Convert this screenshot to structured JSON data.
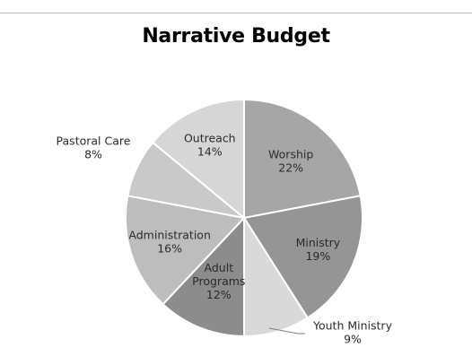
{
  "chart_data": {
    "type": "pie",
    "title": "Narrative Budget",
    "slices": [
      {
        "label": "Worship",
        "value": 22,
        "pct": "22%",
        "color": "#a6a6a6"
      },
      {
        "label": "Ministry",
        "value": 19,
        "pct": "19%",
        "color": "#959595"
      },
      {
        "label": "Youth Ministry",
        "value": 9,
        "pct": "9%",
        "color": "#d9d9d9"
      },
      {
        "label": "Adult Programs",
        "value": 12,
        "pct": "12%",
        "color": "#8c8c8c"
      },
      {
        "label": "Administration",
        "value": 16,
        "pct": "16%",
        "color": "#bdbdbd"
      },
      {
        "label": "Pastoral Care",
        "value": 8,
        "pct": "8%",
        "color": "#c9c9c9"
      },
      {
        "label": "Outreach",
        "value": 14,
        "pct": "14%",
        "color": "#d6d6d6"
      }
    ],
    "start_angle_deg": 0,
    "direction": "clockwise",
    "legend": "none",
    "label_position": "inside-slices"
  }
}
